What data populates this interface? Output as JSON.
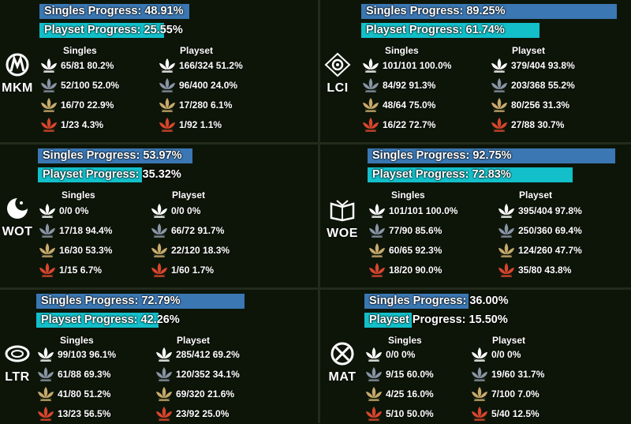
{
  "colors": {
    "singles_bar": "#3a77b3",
    "playset_bar": "#13bfc9",
    "common": "#ffffff",
    "uncommon": "#8994a5",
    "rare": "#c8aa6b",
    "mythic": "#d8462d"
  },
  "labels": {
    "singles": "Singles",
    "playset": "Playset"
  },
  "sets": [
    {
      "code": "MKM",
      "icon": "mkm-set-icon",
      "singles_label": "Singles Progress: 48.91%",
      "singles_progress": 48.91,
      "playset_label": "Playset Progress: 25.55%",
      "playset_progress": 25.55,
      "singles": [
        "65/81 80.2%",
        "52/100 52.0%",
        "16/70 22.9%",
        "1/23 4.3%"
      ],
      "playset": [
        "166/324 51.2%",
        "96/400 24.0%",
        "17/280 6.1%",
        "1/92 1.1%"
      ]
    },
    {
      "code": "LCI",
      "icon": "lci-set-icon",
      "singles_label": "Singles Progress: 89.25%",
      "singles_progress": 89.25,
      "playset_label": "Playset Progress: 61.74%",
      "playset_progress": 61.74,
      "singles": [
        "101/101 100.0%",
        "84/92 91.3%",
        "48/64 75.0%",
        "16/22 72.7%"
      ],
      "playset": [
        "379/404 93.8%",
        "203/368 55.2%",
        "80/256 31.3%",
        "27/88 30.7%"
      ]
    },
    {
      "code": "WOT",
      "icon": "wot-set-icon",
      "singles_label": "Singles Progress: 53.97%",
      "singles_progress": 53.97,
      "playset_label": "Playset Progress: 35.32%",
      "playset_progress": 35.32,
      "singles": [
        "0/0 0%",
        "17/18 94.4%",
        "16/30 53.3%",
        "1/15 6.7%"
      ],
      "playset": [
        "0/0 0%",
        "66/72 91.7%",
        "22/120 18.3%",
        "1/60 1.7%"
      ]
    },
    {
      "code": "WOE",
      "icon": "woe-set-icon",
      "singles_label": "Singles Progress: 92.75%",
      "singles_progress": 92.75,
      "playset_label": "Playset Progress: 72.83%",
      "playset_progress": 72.83,
      "singles": [
        "101/101 100.0%",
        "77/90 85.6%",
        "60/65 92.3%",
        "18/20 90.0%"
      ],
      "playset": [
        "395/404 97.8%",
        "250/360 69.4%",
        "124/260 47.7%",
        "35/80 43.8%"
      ]
    },
    {
      "code": "LTR",
      "icon": "ltr-set-icon",
      "singles_label": "Singles Progress: 72.79%",
      "singles_progress": 72.79,
      "playset_label": "Playset Progress: 42.26%",
      "playset_progress": 42.26,
      "singles": [
        "99/103 96.1%",
        "61/88 69.3%",
        "41/80 51.2%",
        "13/23 56.5%"
      ],
      "playset": [
        "285/412 69.2%",
        "120/352 34.1%",
        "69/320 21.6%",
        "23/92 25.0%"
      ]
    },
    {
      "code": "MAT",
      "icon": "mat-set-icon",
      "singles_label": "Singles Progress: 36.00%",
      "singles_progress": 36.0,
      "playset_label": "Playset Progress: 15.50%",
      "playset_progress": 15.5,
      "singles": [
        "0/0 0%",
        "9/15 60.0%",
        "4/25 16.0%",
        "5/10 50.0%"
      ],
      "playset": [
        "0/0 0%",
        "19/60 31.7%",
        "7/100 7.0%",
        "5/40 12.5%"
      ]
    }
  ]
}
